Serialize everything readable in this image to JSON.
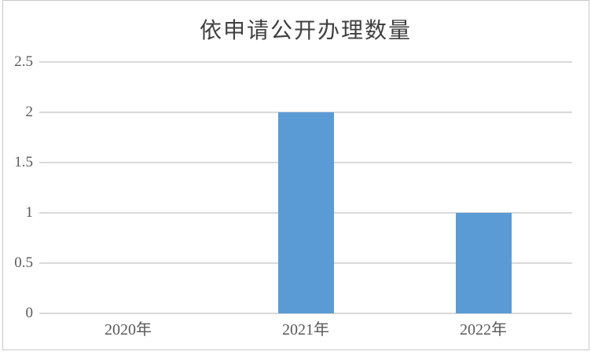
{
  "chart_data": {
    "type": "bar",
    "title": "依申请公开办理数量",
    "categories": [
      "2020年",
      "2021年",
      "2022年"
    ],
    "values": [
      0,
      2,
      1
    ],
    "xlabel": "",
    "ylabel": "",
    "ylim": [
      0,
      2.5
    ],
    "yticks": [
      0,
      0.5,
      1,
      1.5,
      2,
      2.5
    ],
    "ytick_labels": [
      "0",
      "0.5",
      "1",
      "1.5",
      "2",
      "2.5"
    ],
    "grid": true,
    "legend": false,
    "colors": {
      "bar": "#5b9bd5",
      "gridline": "#d9d9d9",
      "axis_label": "#595959",
      "title": "#404040",
      "border": "#c9c9c9",
      "background": "#ffffff"
    }
  }
}
